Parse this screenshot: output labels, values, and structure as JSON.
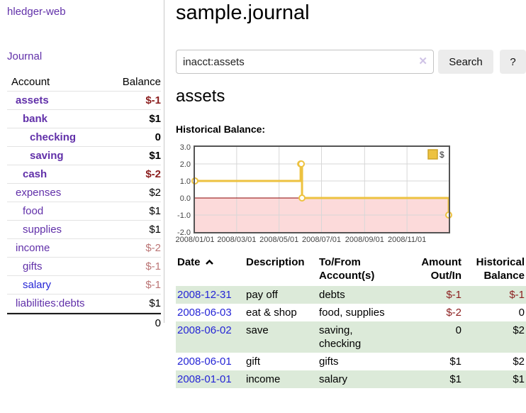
{
  "app": {
    "title": "hledger-web"
  },
  "sidebar": {
    "journal_label": "Journal",
    "headers": {
      "account": "Account",
      "balance": "Balance"
    },
    "accounts": [
      {
        "name": "assets",
        "balance": "$-1",
        "indent": 1,
        "bold": true,
        "link": "purple",
        "balance_class": "neg"
      },
      {
        "name": "bank",
        "balance": "$1",
        "indent": 2,
        "bold": true,
        "link": "purple",
        "balance_class": ""
      },
      {
        "name": "checking",
        "balance": "0",
        "indent": 3,
        "bold": true,
        "link": "purple",
        "balance_class": ""
      },
      {
        "name": "saving",
        "balance": "$1",
        "indent": 3,
        "bold": true,
        "link": "purple",
        "balance_class": ""
      },
      {
        "name": "cash",
        "balance": "$-2",
        "indent": 2,
        "bold": true,
        "link": "purple",
        "balance_class": "neg"
      },
      {
        "name": "expenses",
        "balance": "$2",
        "indent": 1,
        "bold": false,
        "link": "purple",
        "balance_class": ""
      },
      {
        "name": "food",
        "balance": "$1",
        "indent": 2,
        "bold": false,
        "link": "purple",
        "balance_class": ""
      },
      {
        "name": "supplies",
        "balance": "$1",
        "indent": 2,
        "bold": false,
        "link": "purple",
        "balance_class": ""
      },
      {
        "name": "income",
        "balance": "$-2",
        "indent": 1,
        "bold": false,
        "link": "purple",
        "balance_class": "neg-soft"
      },
      {
        "name": "gifts",
        "balance": "$-1",
        "indent": 2,
        "bold": false,
        "link": "purple",
        "balance_class": "neg-soft"
      },
      {
        "name": "salary",
        "balance": "$-1",
        "indent": 2,
        "bold": false,
        "link": "blue",
        "balance_class": "neg-soft"
      },
      {
        "name": "liabilities:debts",
        "balance": "$1",
        "indent": 1,
        "bold": false,
        "link": "purple",
        "balance_class": ""
      }
    ],
    "total": "0"
  },
  "main": {
    "title": "sample.journal",
    "search": {
      "value": "inacct:assets",
      "clear_icon": "✕",
      "button_label": "Search",
      "help_label": "?"
    },
    "heading": "assets",
    "chart_label": "Historical Balance:"
  },
  "chart_data": {
    "type": "line",
    "title": "Historical Balance",
    "legend": [
      {
        "label": "$",
        "color": "#edc240"
      }
    ],
    "legend_position": "top-right",
    "grid": true,
    "ylim": [
      -2,
      3
    ],
    "y_ticks": [
      {
        "label": "3.0",
        "value": 3
      },
      {
        "label": "2.0",
        "value": 2
      },
      {
        "label": "1.0",
        "value": 1
      },
      {
        "label": "0.0",
        "value": 0
      },
      {
        "label": "-1.0",
        "value": -1
      },
      {
        "label": "-2.0",
        "value": -2
      }
    ],
    "x_ticks": [
      {
        "label": "2008/01/01",
        "day": 0
      },
      {
        "label": "2008/03/01",
        "day": 60
      },
      {
        "label": "2008/05/01",
        "day": 121
      },
      {
        "label": "2008/07/01",
        "day": 182
      },
      {
        "label": "2008/09/01",
        "day": 244
      },
      {
        "label": "2008/11/01",
        "day": 305
      }
    ],
    "x_range_days": 365,
    "series": [
      {
        "name": "$",
        "color": "#edc240",
        "style": "step",
        "points": [
          {
            "date": "2008-01-01",
            "day": 0,
            "value": 1
          },
          {
            "date": "2008-06-01",
            "day": 152,
            "value": 2
          },
          {
            "date": "2008-06-02",
            "day": 153,
            "value": 2
          },
          {
            "date": "2008-06-03",
            "day": 154,
            "value": 0
          },
          {
            "date": "2008-12-31",
            "day": 365,
            "value": -1
          }
        ]
      }
    ],
    "negative_region_color": "#fcdada",
    "zero_line_color": "#8b0000",
    "grid_color": "#d7d7d7",
    "border_color": "#545454"
  },
  "register": {
    "headers": {
      "date": "Date",
      "description": "Description",
      "account_line1": "To/From",
      "account_line2": "Account(s)",
      "amount_line1": "Amount",
      "amount_line2": "Out/In",
      "balance_line1": "Historical",
      "balance_line2": "Balance"
    },
    "rows": [
      {
        "date": "2008-12-31",
        "description": "pay off",
        "account": "debts",
        "amount": "$-1",
        "balance": "$-1",
        "amount_neg": true,
        "balance_neg": true,
        "shaded": true
      },
      {
        "date": "2008-06-03",
        "description": "eat & shop",
        "account": "food, supplies",
        "amount": "$-2",
        "balance": "0",
        "amount_neg": true,
        "balance_neg": false,
        "shaded": false
      },
      {
        "date": "2008-06-02",
        "description": "save",
        "account": "saving, checking",
        "amount": "0",
        "balance": "$2",
        "amount_neg": false,
        "balance_neg": false,
        "shaded": true
      },
      {
        "date": "2008-06-01",
        "description": "gift",
        "account": "gifts",
        "amount": "$1",
        "balance": "$2",
        "amount_neg": false,
        "balance_neg": false,
        "shaded": false
      },
      {
        "date": "2008-01-01",
        "description": "income",
        "account": "salary",
        "amount": "$1",
        "balance": "$1",
        "amount_neg": false,
        "balance_neg": false,
        "shaded": true
      }
    ]
  }
}
